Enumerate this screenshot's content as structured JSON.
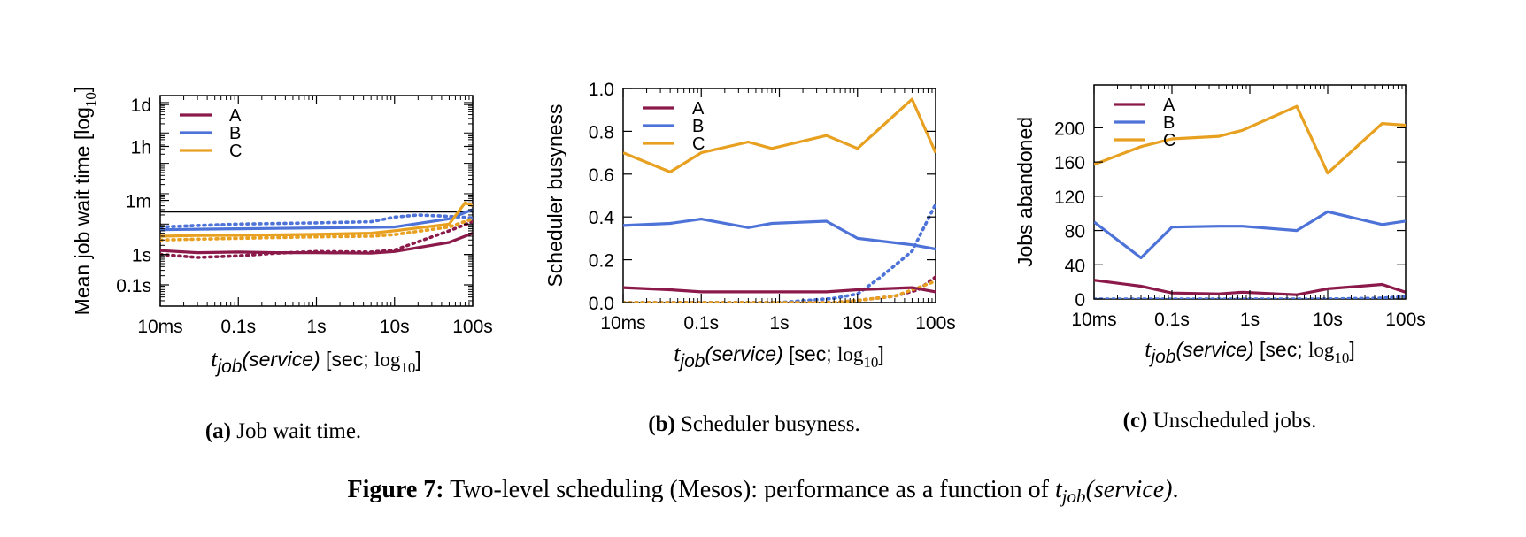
{
  "colors": {
    "A": "#8b1a4a",
    "B": "#4d72d8",
    "C": "#e8a020"
  },
  "xtick_labels": [
    "10ms",
    "0.1s",
    "1s",
    "10s",
    "100s"
  ],
  "xlabel": {
    "t": "t",
    "sub": "job",
    "paren": "(service)",
    "rest": " [sec; ",
    "log": "log",
    "logsub": "10",
    "close": "]"
  },
  "panel_a": {
    "ylabel": "Mean job wait time [log",
    "ylabel_sub": "10",
    "ylabel_close": "]",
    "caption_bold": "(a)",
    "caption_text": " Job wait time."
  },
  "panel_b": {
    "ylabel": "Scheduler busyness",
    "caption_bold": "(b)",
    "caption_text": " Scheduler busyness."
  },
  "panel_c": {
    "ylabel": "Jobs abandoned",
    "caption_bold": "(c)",
    "caption_text": " Unscheduled jobs."
  },
  "figure_caption": {
    "bold": "Figure 7:",
    "text": " Two-level scheduling (Mesos): performance as a function of ",
    "t": "t",
    "sub": "job",
    "paren": "(service)",
    "end": "."
  },
  "chart_data": [
    {
      "type": "line",
      "xscale": "log",
      "xlim": [
        0.01,
        100
      ],
      "yscale": "log",
      "ylim": [
        0.02,
        170000
      ],
      "yticks": [
        {
          "value": 0.1,
          "label": "0.1s"
        },
        {
          "value": 1,
          "label": "1s"
        },
        {
          "value": 60,
          "label": "1m"
        },
        {
          "value": 3600,
          "label": "1h"
        },
        {
          "value": 86400,
          "label": "1d"
        }
      ],
      "hline": 25,
      "legend": "top-left",
      "series": [
        {
          "name": "A",
          "style": "solid",
          "x": [
            0.01,
            0.03,
            0.1,
            0.3,
            1,
            5,
            10,
            50,
            100
          ],
          "y": [
            1.35,
            1.15,
            1.2,
            1.15,
            1.15,
            1.1,
            1.25,
            2.5,
            5
          ]
        },
        {
          "name": "A",
          "style": "dotted",
          "x": [
            0.01,
            0.03,
            0.1,
            0.3,
            1,
            5,
            10,
            50,
            100
          ],
          "y": [
            1.0,
            0.8,
            0.9,
            1.1,
            1.25,
            1.2,
            1.4,
            6,
            12
          ]
        },
        {
          "name": "B",
          "style": "solid",
          "x": [
            0.01,
            0.03,
            0.1,
            0.3,
            1,
            5,
            10,
            50,
            100
          ],
          "y": [
            6.5,
            6.8,
            7,
            7.2,
            7.5,
            7.8,
            8,
            15,
            30
          ]
        },
        {
          "name": "B",
          "style": "dotted",
          "x": [
            0.01,
            0.03,
            0.1,
            0.3,
            1,
            5,
            10,
            20,
            50,
            100
          ],
          "y": [
            8,
            9,
            10,
            10.5,
            11,
            12,
            17,
            20,
            18,
            16
          ]
        },
        {
          "name": "C",
          "style": "solid",
          "x": [
            0.01,
            0.03,
            0.1,
            0.3,
            1,
            5,
            10,
            50,
            80,
            100
          ],
          "y": [
            4,
            4.2,
            4.3,
            4.4,
            4.6,
            5,
            6,
            10,
            50,
            40
          ]
        },
        {
          "name": "C",
          "style": "dotted",
          "x": [
            0.01,
            0.03,
            0.1,
            0.3,
            1,
            5,
            10,
            50,
            100
          ],
          "y": [
            3,
            3.2,
            3.4,
            3.6,
            3.8,
            4,
            4.5,
            8,
            15
          ]
        }
      ]
    },
    {
      "type": "line",
      "xscale": "log",
      "xlim": [
        0.01,
        100
      ],
      "ylim": [
        0,
        1.0
      ],
      "yticks": [
        {
          "value": 0.0,
          "label": "0.0"
        },
        {
          "value": 0.2,
          "label": "0.2"
        },
        {
          "value": 0.4,
          "label": "0.4"
        },
        {
          "value": 0.6,
          "label": "0.6"
        },
        {
          "value": 0.8,
          "label": "0.8"
        },
        {
          "value": 1.0,
          "label": "1.0"
        }
      ],
      "legend": "top-left",
      "series": [
        {
          "name": "A",
          "style": "solid",
          "x": [
            0.01,
            0.04,
            0.1,
            0.4,
            0.8,
            4,
            10,
            50,
            100
          ],
          "y": [
            0.07,
            0.06,
            0.05,
            0.05,
            0.05,
            0.05,
            0.06,
            0.07,
            0.05
          ]
        },
        {
          "name": "A",
          "style": "dotted",
          "x": [
            0.01,
            0.1,
            1,
            5,
            10,
            30,
            60,
            100
          ],
          "y": [
            0.0,
            0.0,
            0.0,
            0.0,
            0.01,
            0.03,
            0.06,
            0.12
          ]
        },
        {
          "name": "B",
          "style": "solid",
          "x": [
            0.01,
            0.04,
            0.1,
            0.4,
            0.8,
            4,
            10,
            50,
            100
          ],
          "y": [
            0.36,
            0.37,
            0.39,
            0.35,
            0.37,
            0.38,
            0.3,
            0.27,
            0.25
          ]
        },
        {
          "name": "B",
          "style": "dotted",
          "x": [
            0.01,
            0.1,
            1,
            5,
            10,
            20,
            50,
            100
          ],
          "y": [
            0.0,
            0.0,
            0.0,
            0.02,
            0.04,
            0.12,
            0.24,
            0.46
          ]
        },
        {
          "name": "C",
          "style": "solid",
          "x": [
            0.01,
            0.04,
            0.1,
            0.4,
            0.8,
            4,
            10,
            50,
            100
          ],
          "y": [
            0.7,
            0.61,
            0.7,
            0.75,
            0.72,
            0.78,
            0.72,
            0.95,
            0.7
          ]
        },
        {
          "name": "C",
          "style": "dotted",
          "x": [
            0.01,
            0.1,
            1,
            5,
            10,
            30,
            60,
            100
          ],
          "y": [
            0.0,
            0.0,
            0.0,
            0.0,
            0.01,
            0.03,
            0.07,
            0.1
          ]
        }
      ]
    },
    {
      "type": "line",
      "xscale": "log",
      "xlim": [
        0.01,
        100
      ],
      "ylim": [
        0,
        250
      ],
      "yticks": [
        {
          "value": 0,
          "label": "0"
        },
        {
          "value": 40,
          "label": "40"
        },
        {
          "value": 80,
          "label": "80"
        },
        {
          "value": 120,
          "label": "120"
        },
        {
          "value": 160,
          "label": "160"
        },
        {
          "value": 200,
          "label": "200"
        }
      ],
      "legend": "top-left",
      "series": [
        {
          "name": "A",
          "style": "solid",
          "x": [
            0.01,
            0.04,
            0.1,
            0.4,
            0.8,
            4,
            10,
            50,
            100
          ],
          "y": [
            22,
            15,
            7,
            6,
            8,
            5,
            12,
            17,
            8
          ]
        },
        {
          "name": "B",
          "style": "solid",
          "x": [
            0.01,
            0.04,
            0.1,
            0.4,
            0.8,
            4,
            10,
            50,
            100
          ],
          "y": [
            90,
            48,
            84,
            85,
            85,
            80,
            102,
            87,
            91
          ]
        },
        {
          "name": "B",
          "style": "dotted",
          "x": [
            0.01,
            0.1,
            1,
            10,
            50,
            100
          ],
          "y": [
            0,
            0,
            0,
            0,
            1,
            3
          ]
        },
        {
          "name": "C",
          "style": "solid",
          "x": [
            0.01,
            0.04,
            0.1,
            0.4,
            0.8,
            4,
            10,
            50,
            100
          ],
          "y": [
            157,
            178,
            187,
            190,
            197,
            225,
            147,
            205,
            203
          ]
        }
      ]
    }
  ]
}
